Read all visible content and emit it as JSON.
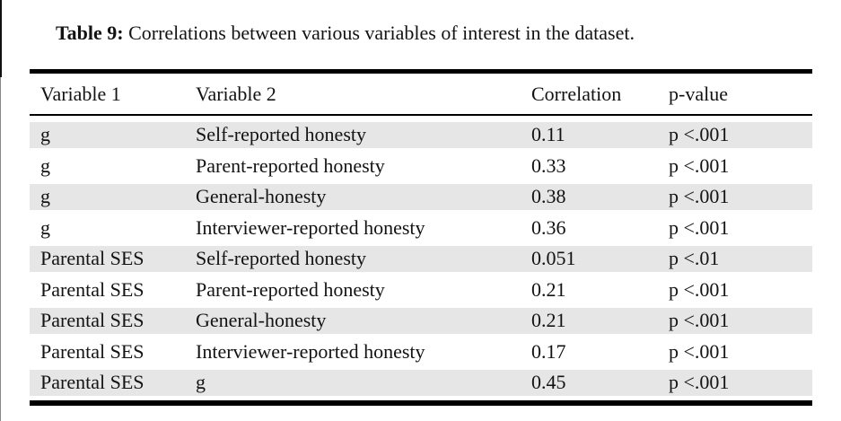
{
  "caption": {
    "label": "Table 9:",
    "text": "Correlations between various variables of interest in the dataset."
  },
  "table": {
    "columns": [
      "Variable 1",
      "Variable 2",
      "Correlation",
      "p-value"
    ],
    "rows": [
      {
        "variable1": "g",
        "variable2": "Self-reported honesty",
        "correlation": "0.11",
        "p_value": "p <.001"
      },
      {
        "variable1": "g",
        "variable2": "Parent-reported honesty",
        "correlation": "0.33",
        "p_value": "p <.001"
      },
      {
        "variable1": "g",
        "variable2": "General-honesty",
        "correlation": "0.38",
        "p_value": "p <.001"
      },
      {
        "variable1": "g",
        "variable2": "Interviewer-reported honesty",
        "correlation": "0.36",
        "p_value": "p <.001"
      },
      {
        "variable1": "Parental SES",
        "variable2": "Self-reported honesty",
        "correlation": "0.051",
        "p_value": "p <.01"
      },
      {
        "variable1": "Parental SES",
        "variable2": "Parent-reported honesty",
        "correlation": "0.21",
        "p_value": "p <.001"
      },
      {
        "variable1": "Parental SES",
        "variable2": "General-honesty",
        "correlation": "0.21",
        "p_value": "p <.001"
      },
      {
        "variable1": "Parental SES",
        "variable2": "Interviewer-reported honesty",
        "correlation": "0.17",
        "p_value": "p <.001"
      },
      {
        "variable1": "Parental SES",
        "variable2": "g",
        "correlation": "0.45",
        "p_value": "p <.001"
      }
    ]
  },
  "colors": {
    "row_shade": "#e6e6e6",
    "rule": "#000000",
    "text": "#131313",
    "background": "#ffffff"
  }
}
